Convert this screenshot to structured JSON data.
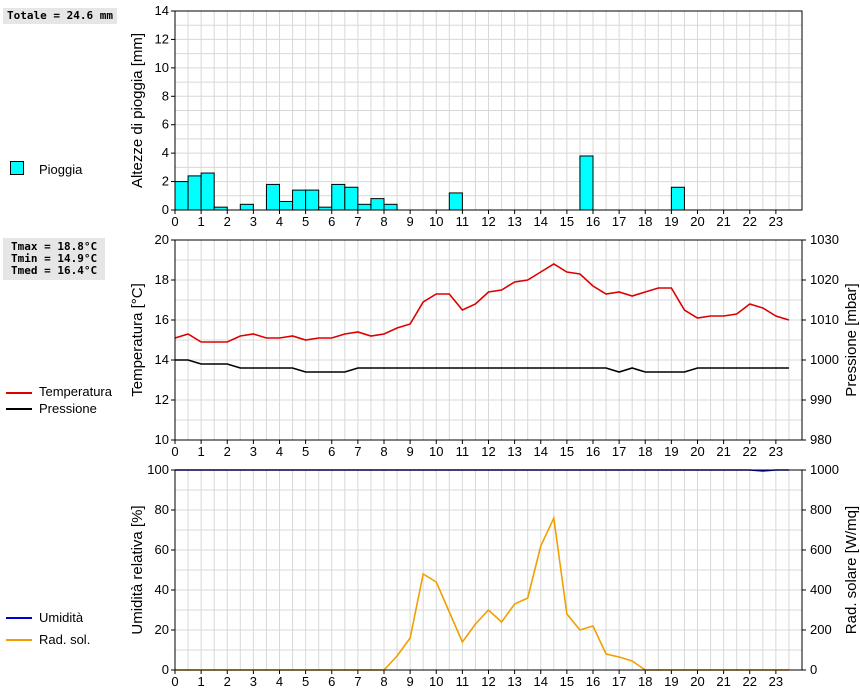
{
  "summary": {
    "totale": "Totale = 24.6 mm",
    "tmax": "Tmax = 18.8°C",
    "tmin": "Tmin = 14.9°C",
    "tmed": "Tmed = 16.4°C"
  },
  "legend": {
    "pioggia": "Pioggia",
    "temperatura": "Temperatura",
    "pressione": "Pressione",
    "umidita": "Umidità",
    "radsol": "Rad. sol."
  },
  "colors": {
    "rain": "#00ffff",
    "temperature": "#dd0000",
    "pressure": "#000000",
    "humidity": "#0000cc",
    "solar": "#f0a000"
  },
  "chart_data": [
    {
      "type": "bar",
      "ylabel": "Altezze di pioggia [mm]",
      "ylim": [
        0,
        14
      ],
      "yticks": [
        0,
        2,
        4,
        6,
        8,
        10,
        12,
        14
      ],
      "xticks": [
        0,
        1,
        2,
        3,
        4,
        5,
        6,
        7,
        8,
        9,
        10,
        11,
        12,
        13,
        14,
        15,
        16,
        17,
        18,
        19,
        20,
        21,
        22,
        23
      ],
      "grid": true,
      "series": [
        {
          "name": "Pioggia",
          "x": [
            0,
            0.5,
            1,
            1.5,
            2.5,
            3.5,
            4,
            4.5,
            5,
            5.5,
            6,
            6.5,
            7,
            7.5,
            8,
            10.5,
            15.5,
            19
          ],
          "values": [
            2.0,
            2.4,
            2.6,
            0.2,
            0.4,
            1.8,
            0.6,
            1.4,
            1.4,
            0.2,
            1.8,
            1.6,
            0.4,
            0.8,
            0.4,
            1.2,
            3.8,
            1.6
          ]
        }
      ]
    },
    {
      "type": "line",
      "ylabel": "Temperatura [°C]",
      "y2label": "Pressione [mbar]",
      "ylim": [
        10,
        20
      ],
      "yticks": [
        10,
        12,
        14,
        16,
        18,
        20
      ],
      "y2lim": [
        980,
        1030
      ],
      "y2ticks": [
        980,
        990,
        1000,
        1010,
        1020,
        1030
      ],
      "xticks": [
        0,
        1,
        2,
        3,
        4,
        5,
        6,
        7,
        8,
        9,
        10,
        11,
        12,
        13,
        14,
        15,
        16,
        17,
        18,
        19,
        20,
        21,
        22,
        23
      ],
      "grid": true,
      "series": [
        {
          "name": "Temperatura",
          "axis": "left",
          "x": [
            0,
            0.5,
            1,
            1.5,
            2,
            2.5,
            3,
            3.5,
            4,
            4.5,
            5,
            5.5,
            6,
            6.5,
            7,
            7.5,
            8,
            8.5,
            9,
            9.5,
            10,
            10.5,
            11,
            11.5,
            12,
            12.5,
            13,
            13.5,
            14,
            14.5,
            15,
            15.5,
            16,
            16.5,
            17,
            17.5,
            18,
            18.5,
            19,
            19.5,
            20,
            20.5,
            21,
            21.5,
            22,
            22.5,
            23,
            23.5
          ],
          "values": [
            15.1,
            15.3,
            14.9,
            14.9,
            14.9,
            15.2,
            15.3,
            15.1,
            15.1,
            15.2,
            15.0,
            15.1,
            15.1,
            15.3,
            15.4,
            15.2,
            15.3,
            15.6,
            15.8,
            16.9,
            17.3,
            17.3,
            16.5,
            16.8,
            17.4,
            17.5,
            17.9,
            18.0,
            18.4,
            18.8,
            18.4,
            18.3,
            17.7,
            17.3,
            17.4,
            17.2,
            17.4,
            17.6,
            17.6,
            16.5,
            16.1,
            16.2,
            16.2,
            16.3,
            16.8,
            16.6,
            16.2,
            16.0
          ]
        },
        {
          "name": "Pressione",
          "axis": "right",
          "x": [
            0,
            0.5,
            1,
            1.5,
            2,
            2.5,
            3,
            3.5,
            4,
            4.5,
            5,
            5.5,
            6,
            6.5,
            7,
            7.5,
            8,
            8.5,
            9,
            9.5,
            10,
            10.5,
            11,
            11.5,
            12,
            12.5,
            13,
            13.5,
            14,
            14.5,
            15,
            15.5,
            16,
            16.5,
            17,
            17.5,
            18,
            18.5,
            19,
            19.5,
            20,
            20.5,
            21,
            21.5,
            22,
            22.5,
            23,
            23.5
          ],
          "values": [
            1000,
            1000,
            999,
            999,
            999,
            998,
            998,
            998,
            998,
            998,
            997,
            997,
            997,
            997,
            998,
            998,
            998,
            998,
            998,
            998,
            998,
            998,
            998,
            998,
            998,
            998,
            998,
            998,
            998,
            998,
            998,
            998,
            998,
            998,
            997,
            998,
            997,
            997,
            997,
            997,
            998,
            998,
            998,
            998,
            998,
            998,
            998,
            998
          ]
        }
      ]
    },
    {
      "type": "line",
      "ylabel": "Umidità relativa [%]",
      "y2label": "Rad. solare [W/mq]",
      "ylim": [
        0,
        100
      ],
      "yticks": [
        0,
        20,
        40,
        60,
        80,
        100
      ],
      "y2lim": [
        0,
        1000
      ],
      "y2ticks": [
        0,
        200,
        400,
        600,
        800,
        1000
      ],
      "xticks": [
        0,
        1,
        2,
        3,
        4,
        5,
        6,
        7,
        8,
        9,
        10,
        11,
        12,
        13,
        14,
        15,
        16,
        17,
        18,
        19,
        20,
        21,
        22,
        23
      ],
      "grid": true,
      "series": [
        {
          "name": "Umidità",
          "axis": "left",
          "x": [
            0,
            22,
            22.5,
            23,
            23.5
          ],
          "values": [
            100,
            100,
            99.5,
            100,
            100
          ]
        },
        {
          "name": "Rad. sol.",
          "axis": "right",
          "x": [
            0,
            0.5,
            1,
            1.5,
            2,
            2.5,
            3,
            3.5,
            4,
            4.5,
            5,
            5.5,
            6,
            6.5,
            7,
            7.5,
            8,
            8.5,
            9,
            9.5,
            10,
            10.5,
            11,
            11.5,
            12,
            12.5,
            13,
            13.5,
            14,
            14.5,
            15,
            15.5,
            16,
            16.5,
            17,
            17.5,
            18,
            18.5,
            19,
            19.5,
            20,
            20.5,
            21,
            21.5,
            22,
            22.5,
            23,
            23.5
          ],
          "values": [
            0,
            0,
            0,
            0,
            0,
            0,
            0,
            0,
            0,
            0,
            0,
            0,
            0,
            0,
            0,
            0,
            0,
            70,
            160,
            480,
            440,
            290,
            140,
            230,
            300,
            240,
            330,
            360,
            620,
            760,
            280,
            200,
            220,
            80,
            65,
            45,
            0,
            0,
            0,
            0,
            0,
            0,
            0,
            0,
            0,
            0,
            0,
            0
          ]
        }
      ]
    }
  ]
}
